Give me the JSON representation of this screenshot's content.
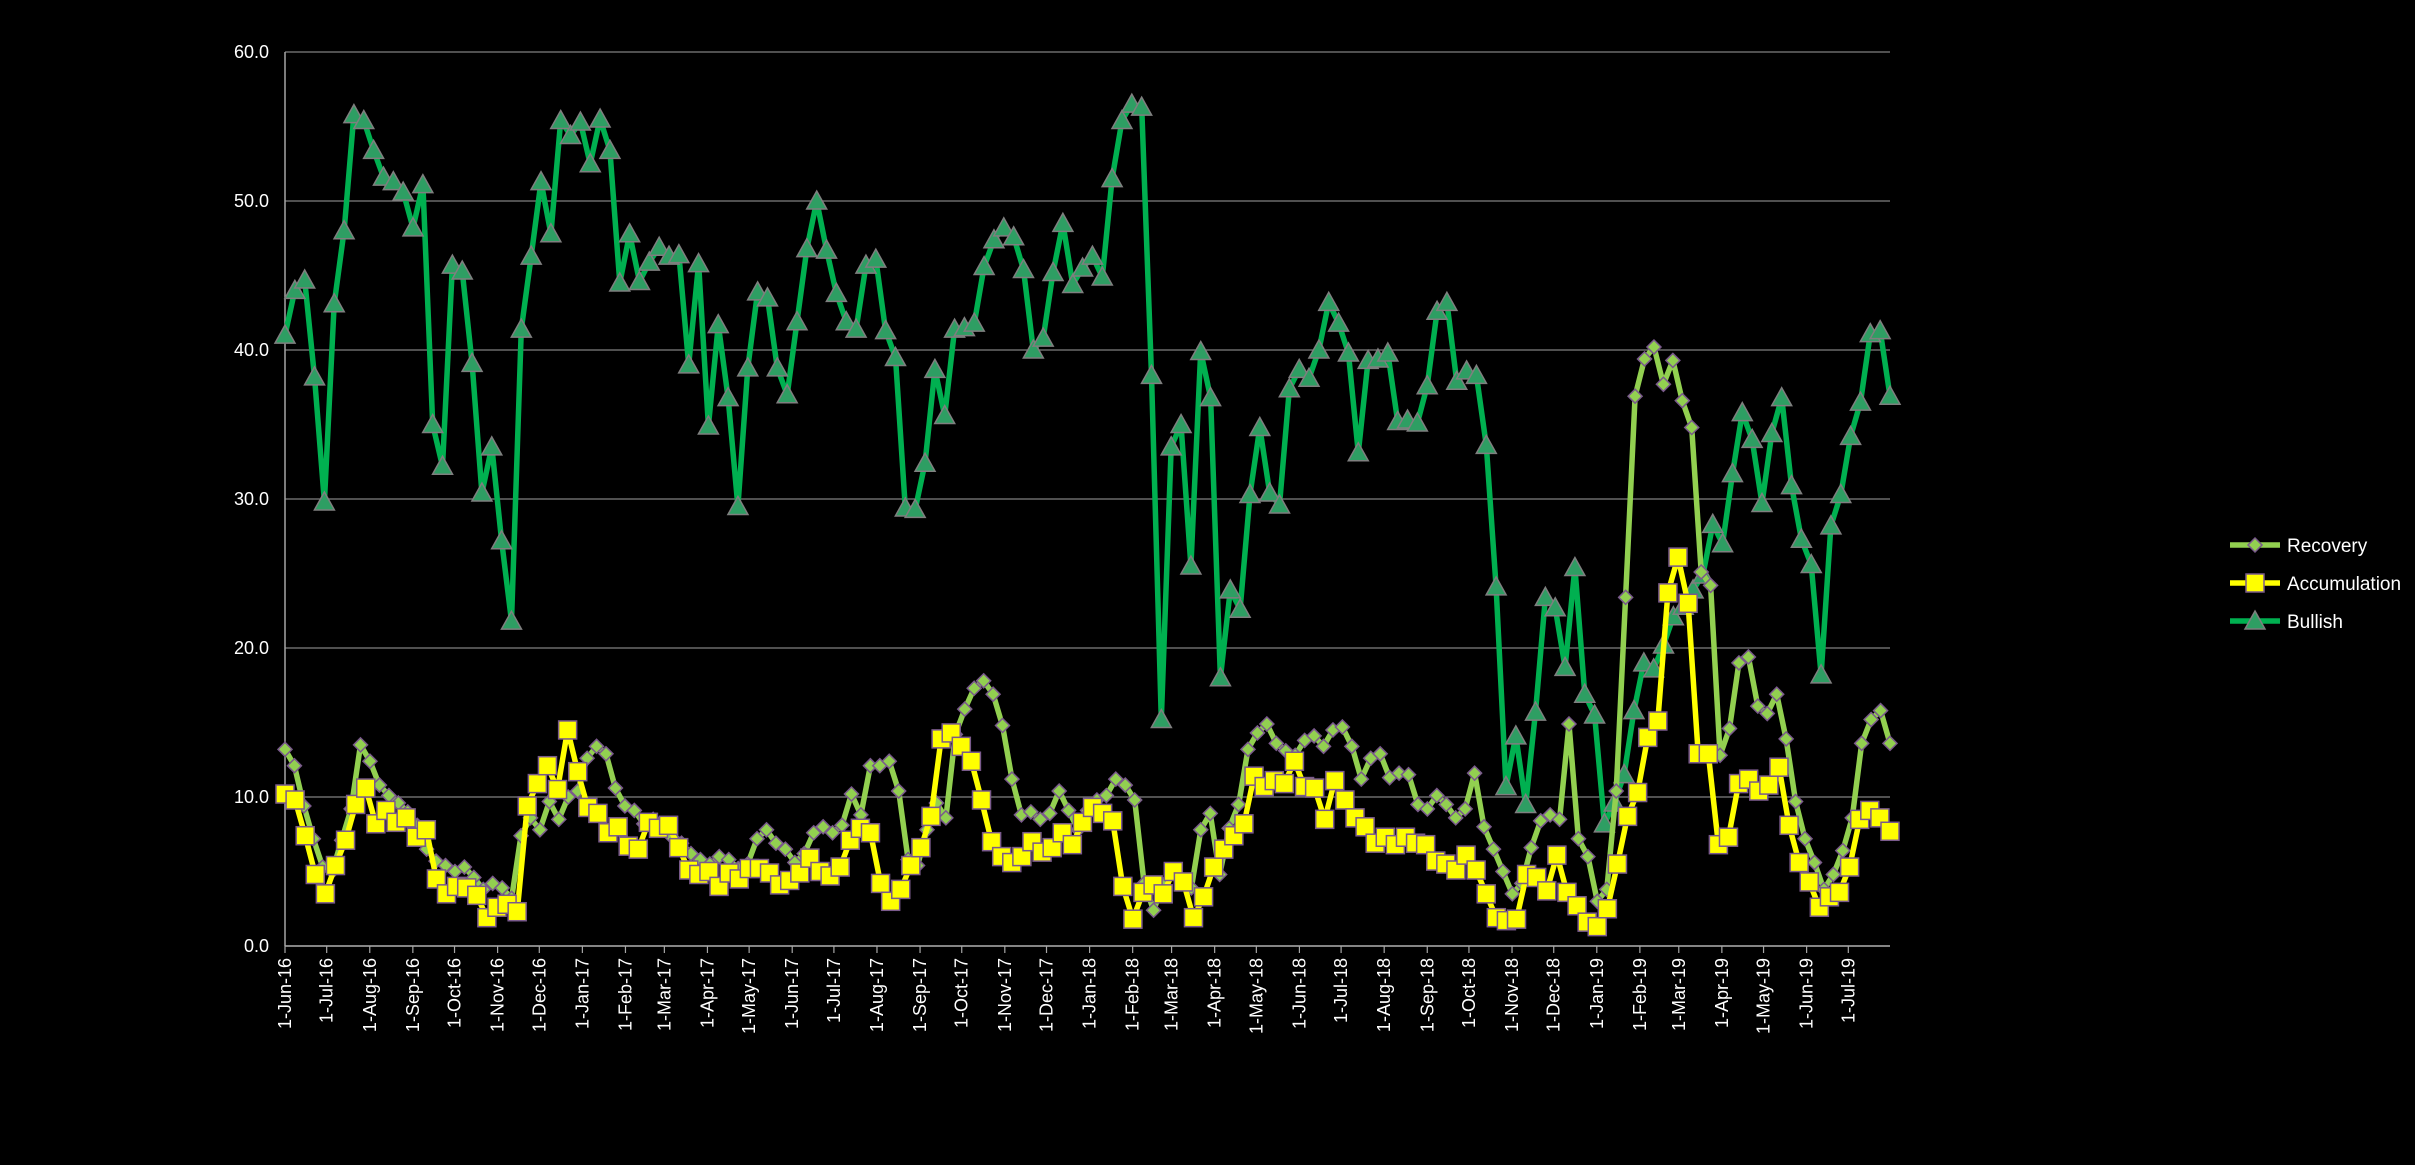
{
  "chart_data": {
    "type": "line",
    "title": "",
    "xlabel": "",
    "ylabel": "",
    "ylim": [
      0,
      60
    ],
    "y_ticks": [
      "0.0",
      "10.0",
      "20.0",
      "30.0",
      "40.0",
      "50.0",
      "60.0"
    ],
    "x_tick_labels": [
      "1-Jun-16",
      "1-Jul-16",
      "1-Aug-16",
      "1-Sep-16",
      "1-Oct-16",
      "1-Nov-16",
      "1-Dec-16",
      "1-Jan-17",
      "1-Feb-17",
      "1-Mar-17",
      "1-Apr-17",
      "1-May-17",
      "1-Jun-17",
      "1-Jul-17",
      "1-Aug-17",
      "1-Sep-17",
      "1-Oct-17",
      "1-Nov-17",
      "1-Dec-17",
      "1-Jan-18",
      "1-Feb-18",
      "1-Mar-18",
      "1-Apr-18",
      "1-May-18",
      "1-Jun-18",
      "1-Jul-18",
      "1-Aug-18",
      "1-Sep-18",
      "1-Oct-18",
      "1-Nov-18",
      "1-Dec-18",
      "1-Jan-19",
      "1-Feb-19",
      "1-Mar-19",
      "1-Apr-19",
      "1-May-19",
      "1-Jun-19",
      "1-Jul-19"
    ],
    "x_start": "2016-06-01",
    "x_end": "2019-07-31",
    "grid": true,
    "legend_position": "right",
    "series": [
      {
        "name": "Recovery",
        "color": "#92d050",
        "marker": "diamond",
        "values": [
          13.2,
          12.1,
          9.4,
          7.2,
          5.3,
          5.0,
          7.1,
          9.2,
          13.5,
          12.4,
          10.8,
          10.1,
          9.6,
          9.0,
          8.1,
          6.5,
          5.7,
          5.4,
          5.0,
          5.3,
          4.6,
          3.8,
          4.2,
          3.9,
          3.2,
          7.4,
          8.6,
          7.8,
          9.7,
          8.5,
          10.0,
          10.4,
          12.6,
          13.4,
          12.9,
          10.6,
          9.4,
          9.1,
          8.2,
          8.5,
          8.0,
          7.3,
          6.9,
          6.2,
          5.8,
          5.5,
          6.0,
          5.8,
          5.2,
          5.5,
          7.2,
          7.8,
          6.9,
          6.5,
          5.6,
          6.2,
          7.6,
          8.0,
          7.6,
          8.1,
          10.2,
          8.8,
          12.1,
          12.1,
          12.4,
          10.4,
          5.8,
          5.4,
          7.8,
          9.6,
          8.6,
          14.2,
          15.9,
          17.3,
          17.8,
          16.9,
          14.8,
          11.2,
          8.8,
          9.0,
          8.5,
          8.9,
          10.4,
          9.1,
          7.8,
          9.1,
          9.8,
          10.1,
          11.2,
          10.8,
          9.8,
          4.2,
          2.4,
          4.1,
          5.0,
          4.5,
          3.9,
          7.8,
          8.9,
          4.8,
          7.9,
          9.5,
          13.2,
          14.3,
          14.9,
          13.6,
          13.1,
          12.8,
          13.8,
          14.1,
          13.4,
          14.5,
          14.7,
          13.4,
          11.2,
          12.6,
          12.9,
          11.3,
          11.6,
          11.5,
          9.5,
          9.2,
          10.1,
          9.5,
          8.6,
          9.2,
          11.6,
          8.0,
          6.5,
          5.0,
          3.5,
          4.2,
          6.6,
          8.4,
          8.8,
          8.5,
          14.9,
          7.2,
          6.0,
          3.0,
          3.8,
          10.4,
          23.4,
          36.9,
          39.4,
          40.2,
          37.7,
          39.3,
          36.6,
          34.8,
          25.1,
          24.2,
          12.8,
          14.6,
          19.0,
          19.4,
          16.1,
          15.6,
          16.9,
          13.9,
          9.7,
          7.2,
          5.6,
          3.8,
          4.8,
          6.4,
          8.6,
          13.6,
          15.2,
          15.8,
          13.6
        ]
      },
      {
        "name": "Accumulation",
        "color": "#ffff00",
        "marker": "square",
        "values": [
          10.2,
          9.8,
          7.4,
          4.8,
          3.5,
          5.4,
          7.1,
          9.5,
          10.6,
          8.2,
          9.1,
          8.3,
          8.6,
          7.3,
          7.8,
          4.5,
          3.5,
          4.0,
          3.9,
          3.4,
          1.9,
          2.6,
          2.8,
          2.3,
          9.4,
          10.9,
          12.1,
          10.5,
          14.5,
          11.7,
          9.3,
          8.9,
          7.6,
          8.0,
          6.7,
          6.5,
          8.3,
          7.9,
          8.1,
          6.6,
          5.1,
          4.8,
          5.0,
          4.0,
          4.9,
          4.5,
          5.2,
          5.2,
          4.9,
          4.1,
          4.4,
          4.9,
          5.9,
          5.0,
          4.7,
          5.3,
          7.1,
          7.9,
          7.6,
          4.2,
          3.0,
          3.8,
          5.4,
          6.6,
          8.7,
          13.9,
          14.3,
          13.4,
          12.4,
          9.8,
          7.0,
          6.0,
          5.6,
          6.0,
          7.0,
          6.3,
          6.6,
          7.6,
          6.8,
          8.3,
          9.3,
          8.9,
          8.4,
          4.0,
          1.8,
          3.6,
          4.1,
          3.5,
          5.0,
          4.3,
          1.9,
          3.3,
          5.3,
          6.5,
          7.4,
          8.2,
          11.4,
          10.7,
          11.1,
          10.9,
          12.4,
          10.7,
          10.6,
          8.5,
          11.1,
          9.8,
          8.6,
          8.0,
          6.9,
          7.3,
          6.8,
          7.3,
          6.9,
          6.8,
          5.7,
          5.5,
          5.1,
          6.1,
          5.1,
          3.5,
          1.9,
          1.7,
          1.8,
          4.8,
          4.6,
          3.7,
          6.1,
          3.6,
          2.7,
          1.6,
          1.3,
          2.5,
          5.5,
          8.7,
          10.3,
          14.0,
          15.1,
          23.7,
          26.1,
          23.0,
          12.9,
          12.9,
          6.8,
          7.3,
          10.9,
          11.2,
          10.4,
          10.8,
          12.0,
          8.1,
          5.6,
          4.3,
          2.6,
          3.3,
          3.6,
          5.3,
          8.5,
          9.1,
          8.6,
          7.7
        ]
      },
      {
        "name": "Bullish",
        "color": "#00b050",
        "marker": "triangle",
        "values": [
          41.0,
          44.0,
          44.7,
          38.2,
          29.8,
          43.1,
          48.0,
          55.8,
          55.4,
          53.4,
          51.6,
          51.3,
          50.6,
          48.2,
          51.1,
          35.0,
          32.2,
          45.7,
          45.3,
          39.1,
          30.4,
          33.5,
          27.2,
          21.8,
          41.4,
          46.3,
          51.3,
          47.8,
          55.4,
          54.4,
          55.3,
          52.5,
          55.5,
          53.4,
          44.5,
          47.8,
          44.6,
          45.9,
          46.9,
          46.3,
          46.4,
          39.0,
          45.8,
          34.9,
          41.7,
          36.8,
          29.5,
          38.8,
          43.9,
          43.5,
          38.8,
          37.0,
          41.9,
          46.8,
          50.0,
          46.7,
          43.8,
          41.9,
          41.4,
          45.7,
          46.1,
          41.3,
          39.5,
          29.4,
          29.3,
          32.4,
          38.7,
          35.6,
          41.4,
          41.5,
          41.8,
          45.6,
          47.4,
          48.2,
          47.6,
          45.4,
          40.0,
          40.8,
          45.2,
          48.5,
          44.4,
          45.5,
          46.3,
          44.9,
          51.5,
          55.4,
          56.5,
          56.3,
          38.3,
          15.2,
          33.5,
          35.0,
          25.5,
          39.9,
          36.8,
          18.0,
          23.9,
          22.6,
          30.3,
          34.8,
          30.4,
          29.6,
          37.4,
          38.7,
          38.1,
          40.0,
          43.2,
          41.8,
          39.8,
          33.1,
          39.3,
          39.4,
          39.8,
          35.2,
          35.3,
          35.1,
          37.6,
          42.6,
          43.2,
          37.9,
          38.6,
          38.3,
          33.6,
          24.1,
          10.7,
          14.1,
          9.5,
          15.7,
          23.4,
          22.7,
          18.7,
          25.4,
          16.9,
          15.5,
          8.2,
          9.6,
          11.5,
          15.8,
          19.0,
          18.6,
          20.2,
          22.1,
          22.8,
          23.9,
          24.9,
          28.3,
          27.0,
          31.7,
          35.8,
          34.0,
          29.7,
          34.4,
          36.8,
          30.9,
          27.3,
          25.6,
          18.2,
          28.2,
          30.3,
          34.2,
          36.5,
          41.1,
          41.3,
          36.9
        ]
      }
    ]
  }
}
